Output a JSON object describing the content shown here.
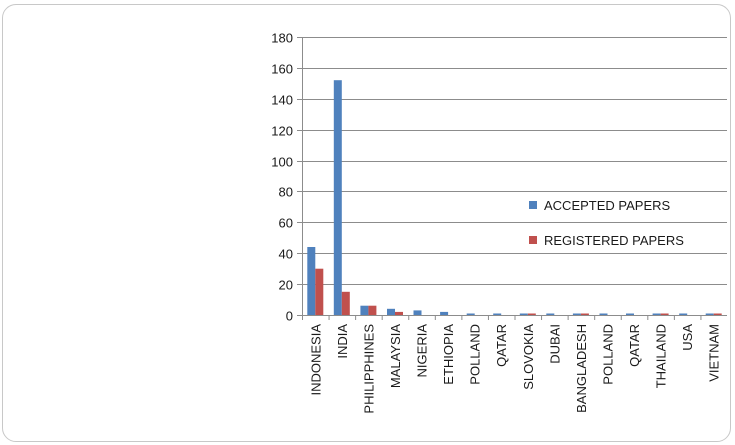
{
  "chart_data": {
    "type": "bar",
    "categories": [
      "INDONESIA",
      "INDIA",
      "PHILIPPHINES",
      "MALAYSIA",
      "NIGERIA",
      "ETHIOPIA",
      "POLLAND",
      "QATAR",
      "SLOVOKIA",
      "DUBAI",
      "BANGLADESH",
      "POLLAND",
      "QATAR",
      "THAILAND",
      "USA",
      "VIETNAM"
    ],
    "series": [
      {
        "name": "ACCEPTED PAPERS",
        "color": "#4f81bd",
        "values": [
          44,
          152,
          6,
          4,
          3,
          2,
          1,
          1,
          1,
          1,
          1,
          1,
          1,
          1,
          1,
          1
        ]
      },
      {
        "name": "REGISTERED PAPERS",
        "color": "#c0504d",
        "values": [
          30,
          15,
          6,
          2,
          0,
          0,
          0,
          0,
          1,
          0,
          1,
          0,
          0,
          1,
          0,
          1
        ]
      }
    ],
    "title": "",
    "xlabel": "",
    "ylabel": "",
    "ylim": [
      0,
      180
    ],
    "yticks": [
      "0",
      "20",
      "40",
      "60",
      "80",
      "100",
      "120",
      "140",
      "160",
      "180"
    ],
    "grid": true,
    "legend_position": "right"
  }
}
